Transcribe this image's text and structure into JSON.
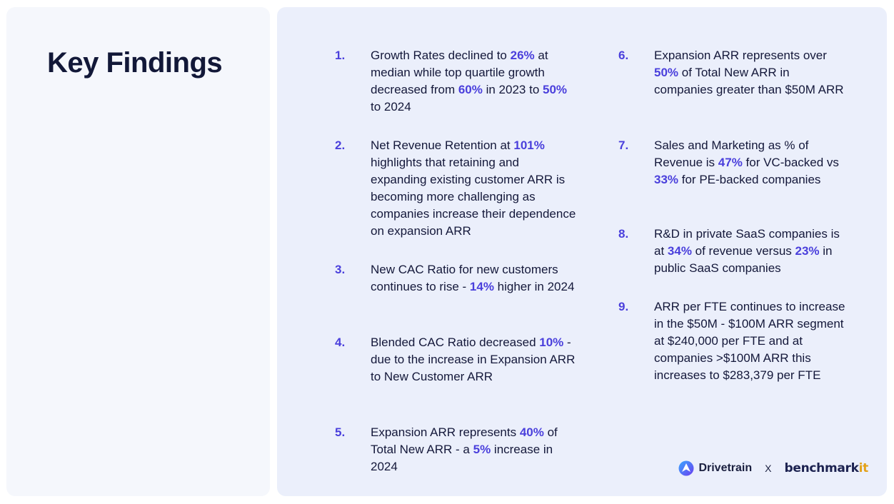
{
  "title": "Key Findings",
  "colors": {
    "accent": "#4a3fdc",
    "text": "#14183a",
    "panel_left": "#f5f7fc",
    "panel_right": "#ebeffb"
  },
  "findings": [
    {
      "num": "1.",
      "parts": [
        {
          "t": "Growth Rates declined to "
        },
        {
          "t": "26%",
          "hl": true
        },
        {
          "t": " at median while top quartile growth decreased from "
        },
        {
          "t": "60%",
          "hl": true
        },
        {
          "t": " in 2023 to "
        },
        {
          "t": "50%",
          "hl": true
        },
        {
          "t": " to 2024"
        }
      ]
    },
    {
      "num": "2.",
      "parts": [
        {
          "t": "Net Revenue Retention at "
        },
        {
          "t": "101%",
          "hl": true
        },
        {
          "t": " highlights that retaining and expanding existing customer ARR is becoming more challenging as companies increase their dependence on expansion ARR"
        }
      ]
    },
    {
      "num": "3.",
      "parts": [
        {
          "t": "New CAC Ratio for new customers continues to rise - "
        },
        {
          "t": "14%",
          "hl": true
        },
        {
          "t": " higher in 2024"
        }
      ]
    },
    {
      "num": "4.",
      "parts": [
        {
          "t": "Blended CAC Ratio decreased "
        },
        {
          "t": "10%",
          "hl": true
        },
        {
          "t": " - due to the increase in Expansion ARR to New Customer ARR"
        }
      ]
    },
    {
      "num": "5.",
      "parts": [
        {
          "t": "Expansion ARR represents "
        },
        {
          "t": "40%",
          "hl": true
        },
        {
          "t": " of Total New ARR - a "
        },
        {
          "t": "5%",
          "hl": true
        },
        {
          "t": " increase in 2024"
        }
      ]
    },
    {
      "num": "6.",
      "parts": [
        {
          "t": "Expansion ARR represents over "
        },
        {
          "t": "50%",
          "hl": true
        },
        {
          "t": " of Total New ARR in companies greater than $50M ARR"
        }
      ]
    },
    {
      "num": "7.",
      "parts": [
        {
          "t": "Sales and Marketing as % of Revenue is "
        },
        {
          "t": "47%",
          "hl": true
        },
        {
          "t": " for VC-backed vs "
        },
        {
          "t": "33%",
          "hl": true
        },
        {
          "t": " for PE-backed companies"
        }
      ]
    },
    {
      "num": "8.",
      "parts": [
        {
          "t": "R&D in private SaaS companies is at "
        },
        {
          "t": "34%",
          "hl": true
        },
        {
          "t": " of revenue versus "
        },
        {
          "t": "23%",
          "hl": true
        },
        {
          "t": " in public SaaS companies"
        }
      ]
    },
    {
      "num": "9.",
      "parts": [
        {
          "t": "ARR per FTE continues to increase in the $50M - $100M ARR segment at $240,000 per FTE and at companies >$100M ARR this increases to $283,379 per FTE"
        }
      ]
    }
  ],
  "logos": {
    "drivetrain_icon": "drivetrain-logo-icon",
    "drivetrain": "Drivetrain",
    "separator": "X",
    "benchmark_main": "benchmark",
    "benchmark_suffix": "it"
  }
}
